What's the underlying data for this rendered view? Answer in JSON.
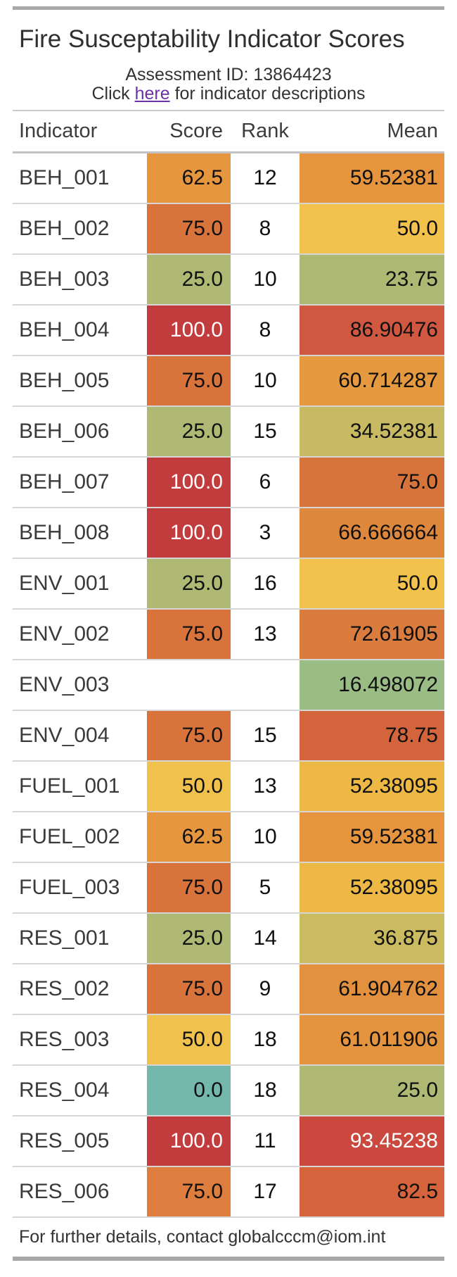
{
  "header": {
    "title": "Fire Susceptability Indicator Scores",
    "subtitle_line1": "Assessment ID: 13864423",
    "subtitle_line2_prefix": "Click ",
    "subtitle_link_text": "here",
    "subtitle_line2_suffix": " for indicator descriptions"
  },
  "footer": {
    "text": "For further details, contact globalcccm@iom.int"
  },
  "colors": {
    "bar_gray": "#A8A8A8",
    "row_border": "#D6D6D6",
    "link_purple": "#6E32A8"
  },
  "chart_data": {
    "type": "table",
    "title": "Fire Susceptability Indicator Scores",
    "columns": [
      "Indicator",
      "Score",
      "Rank",
      "Mean"
    ],
    "column_align": [
      "left",
      "right",
      "center",
      "right"
    ],
    "rows": [
      {
        "indicator": "BEH_001",
        "score": "62.5",
        "rank": "12",
        "mean": "59.52381",
        "score_bg": "#E6963F",
        "score_fg": "#101010",
        "mean_bg": "#E6953E",
        "mean_fg": "#101010"
      },
      {
        "indicator": "BEH_002",
        "score": "75.0",
        "rank": "8",
        "mean": "50.0",
        "score_bg": "#D7733B",
        "score_fg": "#101010",
        "mean_bg": "#F2C24C",
        "mean_fg": "#101010"
      },
      {
        "indicator": "BEH_003",
        "score": "25.0",
        "rank": "10",
        "mean": "23.75",
        "score_bg": "#AFB974",
        "score_fg": "#101010",
        "mean_bg": "#ADB972",
        "mean_fg": "#101010"
      },
      {
        "indicator": "BEH_004",
        "score": "100.0",
        "rank": "8",
        "mean": "86.90476",
        "score_bg": "#C23B3D",
        "score_fg": "#FFFFFF",
        "mean_bg": "#D05840",
        "mean_fg": "#101010"
      },
      {
        "indicator": "BEH_005",
        "score": "75.0",
        "rank": "10",
        "mean": "60.714287",
        "score_bg": "#D7733B",
        "score_fg": "#101010",
        "mean_bg": "#E59A40",
        "mean_fg": "#101010"
      },
      {
        "indicator": "BEH_006",
        "score": "25.0",
        "rank": "15",
        "mean": "34.52381",
        "score_bg": "#AFB974",
        "score_fg": "#101010",
        "mean_bg": "#C7BA63",
        "mean_fg": "#101010"
      },
      {
        "indicator": "BEH_007",
        "score": "100.0",
        "rank": "6",
        "mean": "75.0",
        "score_bg": "#C23B3D",
        "score_fg": "#FFFFFF",
        "mean_bg": "#D7743C",
        "mean_fg": "#101010"
      },
      {
        "indicator": "BEH_008",
        "score": "100.0",
        "rank": "3",
        "mean": "66.666664",
        "score_bg": "#C23B3D",
        "score_fg": "#FFFFFF",
        "mean_bg": "#DE883D",
        "mean_fg": "#101010"
      },
      {
        "indicator": "ENV_001",
        "score": "25.0",
        "rank": "16",
        "mean": "50.0",
        "score_bg": "#AFB974",
        "score_fg": "#101010",
        "mean_bg": "#F2C24C",
        "mean_fg": "#101010"
      },
      {
        "indicator": "ENV_002",
        "score": "75.0",
        "rank": "13",
        "mean": "72.61905",
        "score_bg": "#D7733B",
        "score_fg": "#101010",
        "mean_bg": "#D97C3D",
        "mean_fg": "#101010"
      },
      {
        "indicator": "ENV_003",
        "score": "",
        "rank": "",
        "mean": "16.498072",
        "score_bg": "",
        "score_fg": "",
        "mean_bg": "#9ABD85",
        "mean_fg": "#101010"
      },
      {
        "indicator": "ENV_004",
        "score": "75.0",
        "rank": "15",
        "mean": "78.75",
        "score_bg": "#D7733B",
        "score_fg": "#101010",
        "mean_bg": "#D3643C",
        "mean_fg": "#101010"
      },
      {
        "indicator": "FUEL_001",
        "score": "50.0",
        "rank": "13",
        "mean": "52.38095",
        "score_bg": "#F0C24D",
        "score_fg": "#101010",
        "mean_bg": "#EEB845",
        "mean_fg": "#101010"
      },
      {
        "indicator": "FUEL_002",
        "score": "62.5",
        "rank": "10",
        "mean": "59.52381",
        "score_bg": "#E6963F",
        "score_fg": "#101010",
        "mean_bg": "#E6953E",
        "mean_fg": "#101010"
      },
      {
        "indicator": "FUEL_003",
        "score": "75.0",
        "rank": "5",
        "mean": "52.38095",
        "score_bg": "#D7733B",
        "score_fg": "#101010",
        "mean_bg": "#EEB845",
        "mean_fg": "#101010"
      },
      {
        "indicator": "RES_001",
        "score": "25.0",
        "rank": "14",
        "mean": "36.875",
        "score_bg": "#AFB974",
        "score_fg": "#101010",
        "mean_bg": "#CABB60",
        "mean_fg": "#101010"
      },
      {
        "indicator": "RES_002",
        "score": "75.0",
        "rank": "9",
        "mean": "61.904762",
        "score_bg": "#D7733B",
        "score_fg": "#101010",
        "mean_bg": "#E3913E",
        "mean_fg": "#101010"
      },
      {
        "indicator": "RES_003",
        "score": "50.0",
        "rank": "18",
        "mean": "61.011906",
        "score_bg": "#F0C24D",
        "score_fg": "#101010",
        "mean_bg": "#E4943E",
        "mean_fg": "#101010"
      },
      {
        "indicator": "RES_004",
        "score": "0.0",
        "rank": "18",
        "mean": "25.0",
        "score_bg": "#74B7AC",
        "score_fg": "#101010",
        "mean_bg": "#AFB974",
        "mean_fg": "#101010"
      },
      {
        "indicator": "RES_005",
        "score": "100.0",
        "rank": "11",
        "mean": "93.45238",
        "score_bg": "#C23B3D",
        "score_fg": "#FFFFFF",
        "mean_bg": "#CA483E",
        "mean_fg": "#FFFFFF"
      },
      {
        "indicator": "RES_006",
        "score": "75.0",
        "rank": "17",
        "mean": "82.5",
        "score_bg": "#DE7E3E",
        "score_fg": "#101010",
        "mean_bg": "#D5643C",
        "mean_fg": "#101010"
      }
    ]
  }
}
